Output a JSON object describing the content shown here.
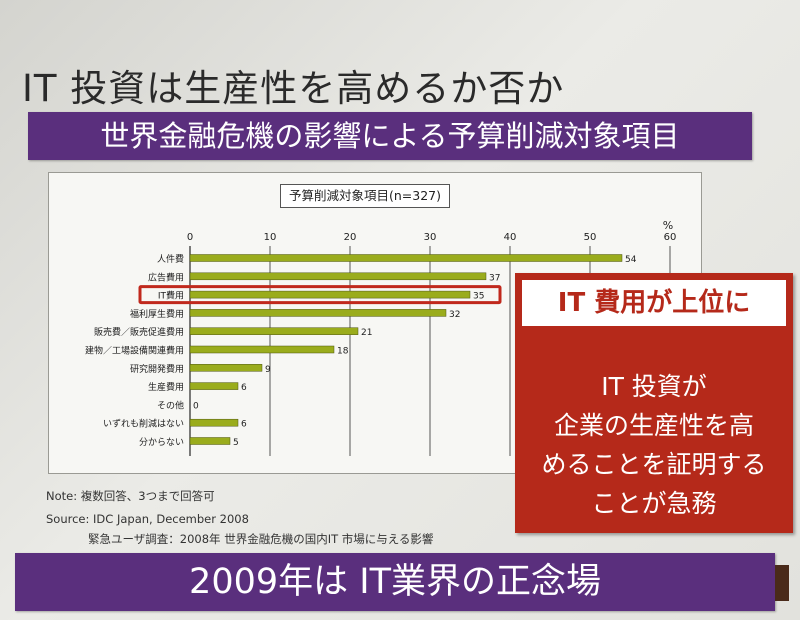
{
  "slide": {
    "title": "IT 投資は生産性を高めるか否か",
    "subtitle_banner": "世界金融危機の影響による予算削減対象項目",
    "footer_banner": "2009年は IT業界の正念場"
  },
  "callout": {
    "heading": "IT 費用が上位に",
    "lines": [
      "IT 投資が",
      "企業の生産性を高",
      "めることを証明する",
      "ことが急務"
    ]
  },
  "notes": {
    "note": "Note: 複数回答、3つまで回答可",
    "source": "Source: IDC Japan, December 2008",
    "survey": "緊急ユーザ調査：2008年 世界金融危機の国内IT 市場に与える影響"
  },
  "colors": {
    "banner": "#5a2f7d",
    "bar": "#9aac1c",
    "highlight": "#c0281c",
    "callout": "#b5291a"
  },
  "chart_data": {
    "type": "bar",
    "orientation": "horizontal",
    "title": "予算削減対象項目(n=327)",
    "unit": "%",
    "xlim": [
      0,
      60
    ],
    "ticks": [
      0,
      10,
      20,
      30,
      40,
      50,
      60
    ],
    "grid": true,
    "categories": [
      "人件費",
      "広告費用",
      "IT費用",
      "福利厚生費用",
      "販売費／販売促進費用",
      "建物／工場設備関連費用",
      "研究開発費用",
      "生産費用",
      "その他",
      "いずれも削減はない",
      "分からない"
    ],
    "values": [
      54,
      37,
      35,
      32,
      21,
      18,
      9,
      6,
      0,
      6,
      5
    ],
    "highlighted_category": "IT費用"
  }
}
